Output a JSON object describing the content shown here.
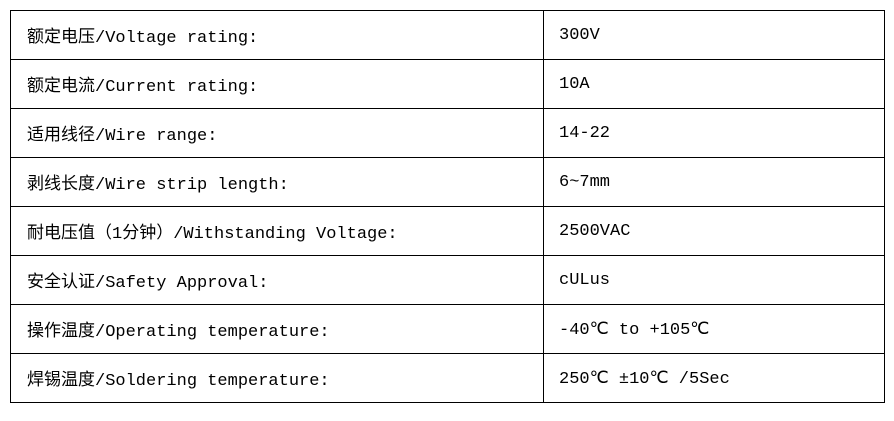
{
  "specs": [
    {
      "label": "额定电压/Voltage rating:",
      "value": "300V"
    },
    {
      "label": "额定电流/Current rating:",
      "value": "10A"
    },
    {
      "label": "适用线径/Wire range:",
      "value": "14-22"
    },
    {
      "label": "剥线长度/Wire strip length:",
      "value": "6~7mm"
    },
    {
      "label": "耐电压值（1分钟）/Withstanding Voltage:",
      "value": "2500VAC"
    },
    {
      "label": "安全认证/Safety Approval:",
      "value": "cULus"
    },
    {
      "label": "操作温度/Operating temperature:",
      "value": "-40℃ to +105℃"
    },
    {
      "label": "焊锡温度/Soldering temperature:",
      "value": "250℃ ±10℃ /5Sec"
    }
  ]
}
